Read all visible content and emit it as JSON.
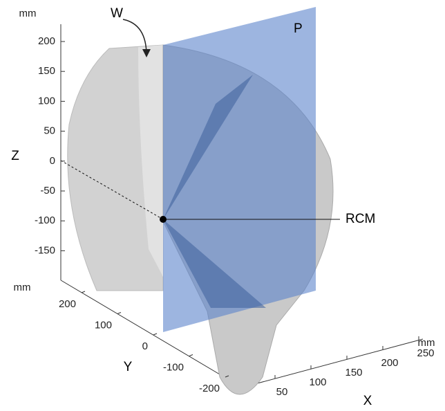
{
  "figure": {
    "z_axis": {
      "unit": "mm",
      "label": "Z",
      "ticks": [
        200,
        150,
        100,
        50,
        0,
        -50,
        -100,
        -150
      ]
    },
    "y_axis": {
      "unit": "mm",
      "label": "Y",
      "ticks": [
        200,
        100,
        0,
        -100,
        -200
      ]
    },
    "x_axis": {
      "unit": "mm",
      "label": "X",
      "ticks": [
        50,
        100,
        150,
        200,
        250
      ]
    },
    "annotations": {
      "workspace": "W",
      "plane": "P",
      "rcm": "RCM"
    }
  }
}
